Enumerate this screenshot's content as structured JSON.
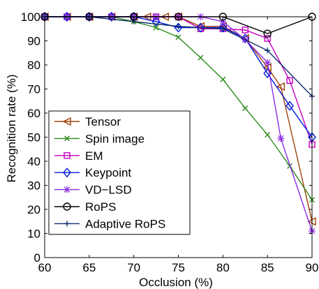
{
  "chart_data": {
    "type": "line",
    "title": "",
    "xlabel": "Occlusion (%)",
    "ylabel": "Recognition rate (%)",
    "xlim": [
      60,
      90
    ],
    "ylim": [
      0,
      100
    ],
    "xticks": [
      60,
      65,
      70,
      75,
      80,
      85,
      90
    ],
    "yticks": [
      0,
      10,
      20,
      30,
      40,
      50,
      60,
      70,
      80,
      90,
      100
    ],
    "grid": false,
    "legend": "bottom-left",
    "series": [
      {
        "name": "Tensor",
        "color": "#a0420b",
        "marker": "triangle-left",
        "x": [
          60,
          62.5,
          65,
          67.5,
          70,
          71.5,
          73.5,
          75,
          77.5,
          80,
          82.5,
          85,
          86.5,
          90
        ],
        "y": [
          100,
          100,
          100,
          100,
          100,
          100,
          100,
          100,
          96,
          96,
          91,
          79,
          71,
          15
        ]
      },
      {
        "name": "Spin image",
        "color": "#2a8a1a",
        "marker": "x",
        "x": [
          60,
          62.5,
          65,
          67.5,
          70,
          72.5,
          75,
          77.5,
          80,
          82.5,
          85,
          87.5,
          90
        ],
        "y": [
          100,
          100,
          100,
          100,
          98,
          95.5,
          91.5,
          83,
          74,
          62,
          51,
          38,
          24
        ]
      },
      {
        "name": "EM",
        "color": "#c000c0",
        "marker": "square",
        "x": [
          60,
          62.5,
          65,
          67.5,
          70,
          72.5,
          75,
          77.5,
          80,
          82.5,
          85,
          87.5,
          90
        ],
        "y": [
          100,
          100,
          100,
          100,
          100,
          100,
          100,
          95,
          95,
          94.5,
          91,
          73.5,
          47
        ]
      },
      {
        "name": "Keypoint",
        "color": "#0018d8",
        "marker": "diamond",
        "x": [
          60,
          62.5,
          65,
          67.5,
          70,
          72.5,
          75,
          77.5,
          80,
          82.5,
          85,
          87.5,
          90
        ],
        "y": [
          100,
          100,
          100,
          100,
          100,
          98,
          95.5,
          95.5,
          95.5,
          91,
          76.5,
          63,
          50
        ]
      },
      {
        "name": "VD−LSD",
        "color": "#8a2be2",
        "marker": "star",
        "x": [
          60,
          62.5,
          65,
          67.5,
          70,
          72.5,
          75,
          77.5,
          80,
          82.5,
          85,
          86.5,
          90
        ],
        "y": [
          100,
          100,
          100,
          100,
          100,
          100,
          100,
          100,
          98,
          90.5,
          81,
          49.5,
          11
        ]
      },
      {
        "name": "RoPS",
        "color": "#000000",
        "marker": "circle",
        "x": [
          60,
          65,
          70,
          75,
          80,
          85,
          90
        ],
        "y": [
          100,
          100,
          100,
          100,
          100,
          93,
          100
        ]
      },
      {
        "name": "Adaptive RoPS",
        "color": "#0a2a6a",
        "marker": "plus",
        "x": [
          60,
          65,
          70,
          75,
          80,
          85,
          90
        ],
        "y": [
          100,
          100,
          98,
          96,
          95,
          86,
          67
        ]
      }
    ]
  }
}
